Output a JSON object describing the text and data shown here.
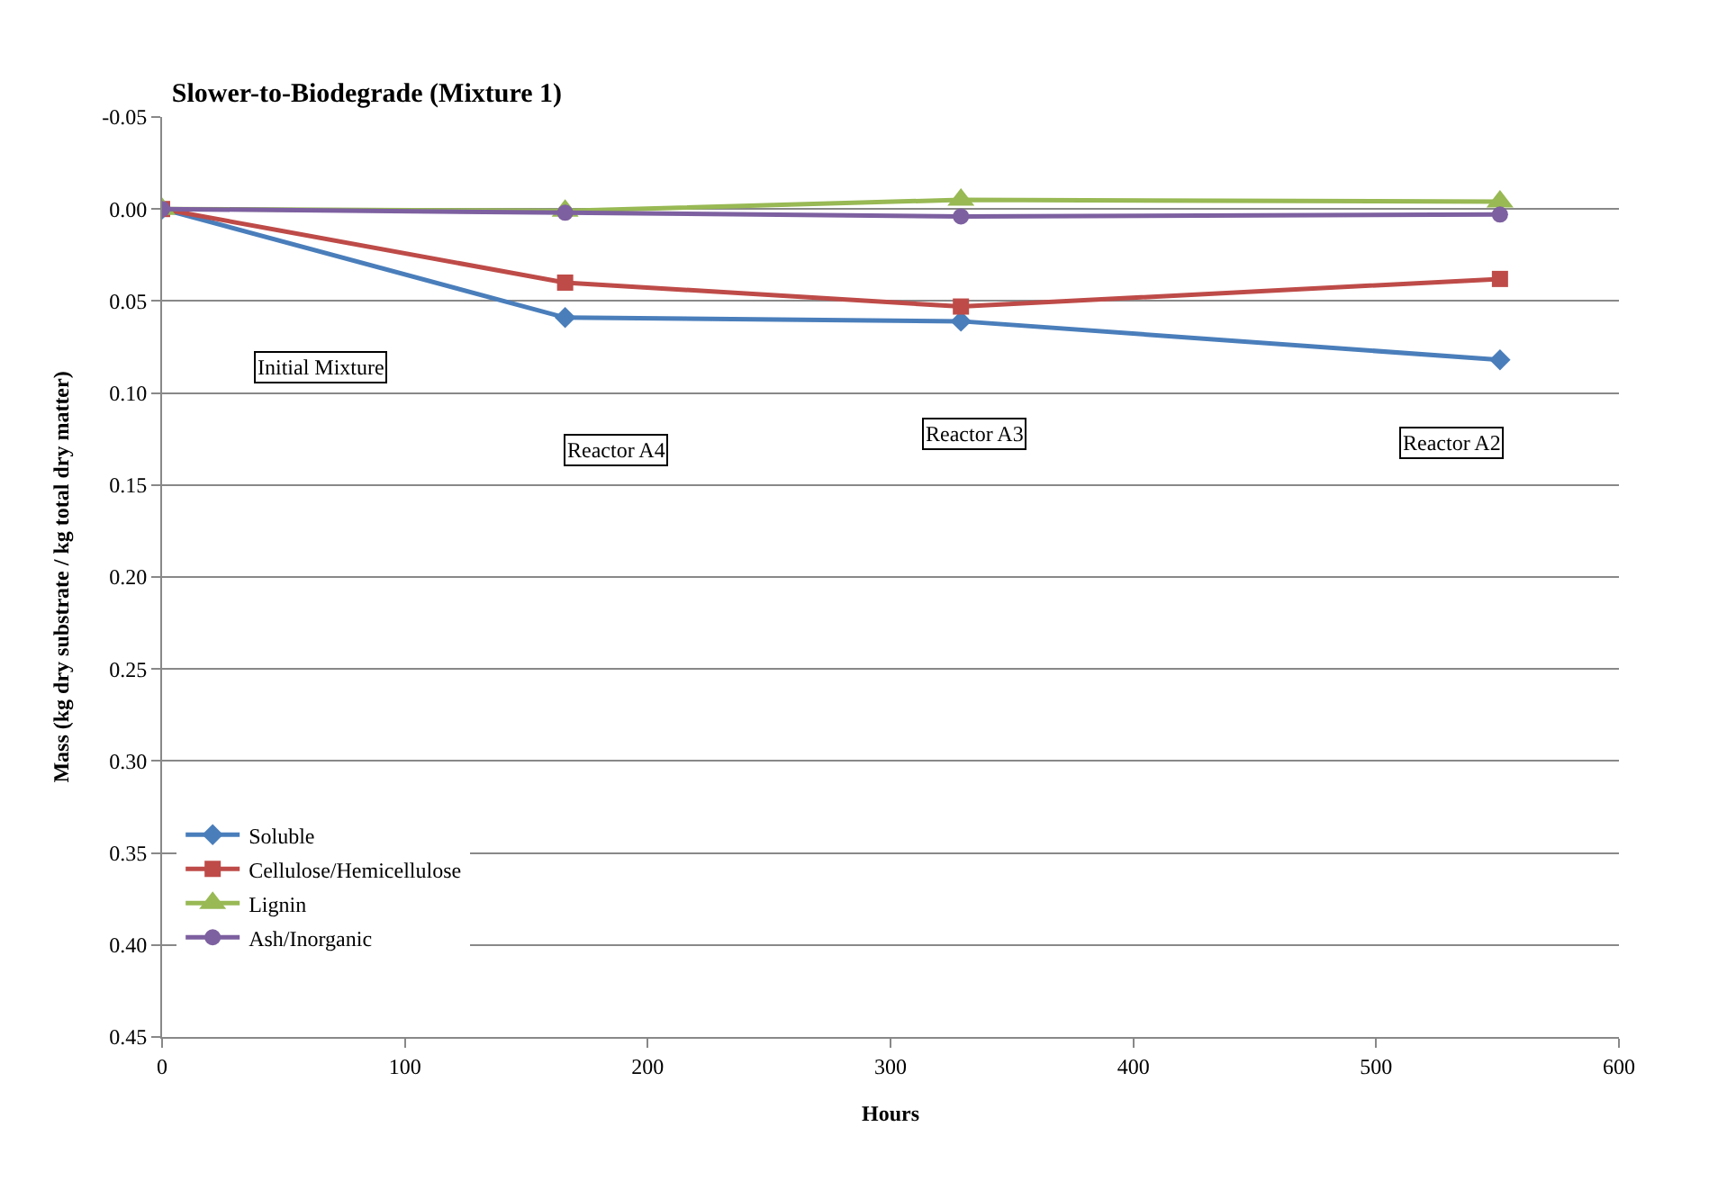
{
  "chart_data": {
    "type": "line",
    "title": "Slower-to-Biodegrade (Mixture 1)",
    "xlabel": "Hours",
    "ylabel": "Mass (kg dry substrate / kg total dry matter)",
    "x": [
      0,
      166,
      329,
      551
    ],
    "series": [
      {
        "name": "Soluble",
        "color": "#4a7ebb",
        "marker": "diamond",
        "values": [
          0,
          0.059,
          0.061,
          0.082
        ]
      },
      {
        "name": "Cellulose/Hemicellulose",
        "color": "#be4b48",
        "marker": "square",
        "values": [
          0,
          0.04,
          0.053,
          0.038
        ]
      },
      {
        "name": "Lignin",
        "color": "#98b954",
        "marker": "triangle",
        "values": [
          0,
          0.001,
          -0.005,
          -0.004
        ]
      },
      {
        "name": "Ash/Inorganic",
        "color": "#7d60a0",
        "marker": "circle",
        "values": [
          0,
          0.002,
          0.004,
          0.003
        ]
      }
    ],
    "annotations": [
      "Initial Mixture",
      "Reactor A4",
      "Reactor A3",
      "Reactor A2"
    ],
    "xlim": [
      0,
      600
    ],
    "xticks": [
      0,
      100,
      200,
      300,
      400,
      500,
      600
    ],
    "ylim": [
      0.45,
      -0.05
    ],
    "yticks": [
      {
        "value": -0.05,
        "label": "-0.05"
      },
      {
        "value": 0,
        "label": "0.00"
      },
      {
        "value": 0.05,
        "label": "0.05"
      },
      {
        "value": 0.1,
        "label": "0.10"
      },
      {
        "value": 0.15,
        "label": "0.15"
      },
      {
        "value": 0.2,
        "label": "0.20"
      },
      {
        "value": 0.25,
        "label": "0.25"
      },
      {
        "value": 0.3,
        "label": "0.30"
      },
      {
        "value": 0.35,
        "label": "0.35"
      },
      {
        "value": 0.4,
        "label": "0.40"
      },
      {
        "value": 0.45,
        "label": "0.45"
      }
    ],
    "grid": "y",
    "legend": "bottom left",
    "line_style": "solid"
  }
}
